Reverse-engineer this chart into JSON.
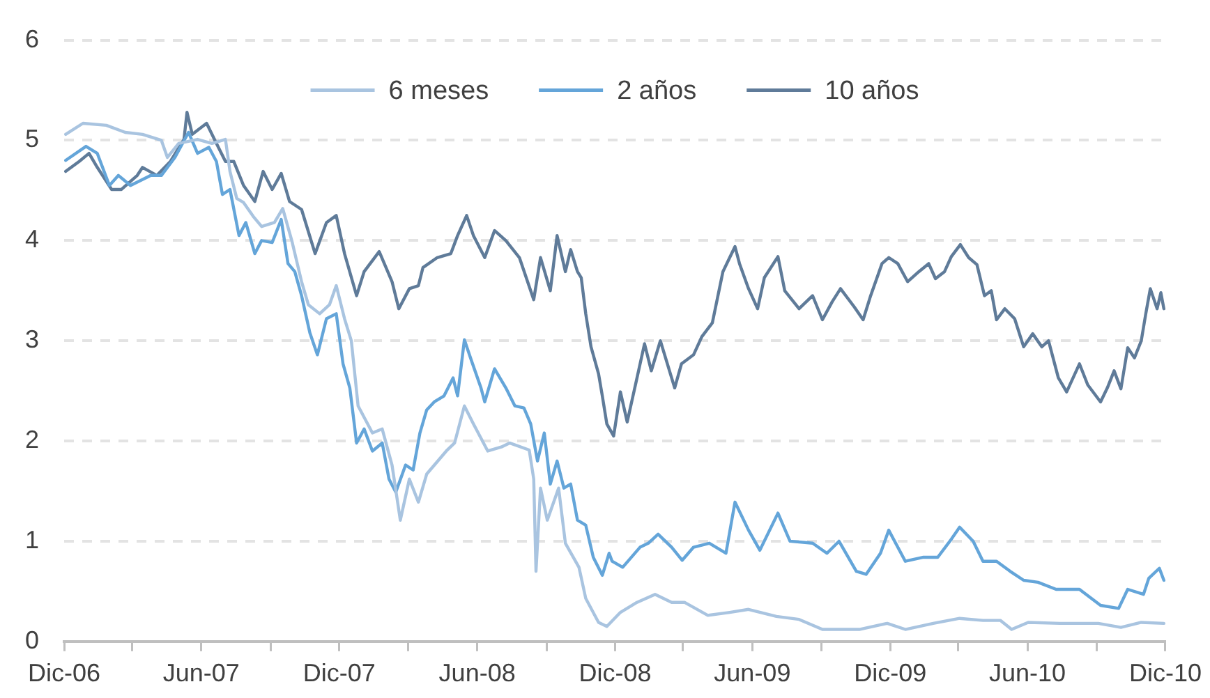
{
  "chart_data": {
    "type": "line",
    "xlim": [
      "2006-12",
      "2010-12"
    ],
    "xticks": [
      {
        "value": "2006-12",
        "label": "Dic-06"
      },
      {
        "value": "2007-03",
        "label": null
      },
      {
        "value": "2007-06",
        "label": "Jun-07"
      },
      {
        "value": "2007-09",
        "label": null
      },
      {
        "value": "2007-12",
        "label": "Dic-07"
      },
      {
        "value": "2008-03",
        "label": null
      },
      {
        "value": "2008-06",
        "label": "Jun-08"
      },
      {
        "value": "2008-09",
        "label": null
      },
      {
        "value": "2008-12",
        "label": "Dic-08"
      },
      {
        "value": "2009-03",
        "label": null
      },
      {
        "value": "2009-06",
        "label": "Jun-09"
      },
      {
        "value": "2009-09",
        "label": null
      },
      {
        "value": "2009-12",
        "label": "Dic-09"
      },
      {
        "value": "2010-03",
        "label": null
      },
      {
        "value": "2010-06",
        "label": "Jun-10"
      },
      {
        "value": "2010-09",
        "label": null
      },
      {
        "value": "2010-12",
        "label": "Dic-10"
      }
    ],
    "ylim": [
      0,
      6
    ],
    "yticks": [
      0,
      1,
      2,
      3,
      4,
      5,
      6
    ],
    "grid": "y",
    "legend": "top",
    "marker": "none",
    "line_style": "solid",
    "series": [
      {
        "name": "6 meses",
        "color": "#a9c4e0",
        "x": [
          "2006-12-03",
          "2006-12-26",
          "2007-01-26",
          "2007-02-20",
          "2007-03-15",
          "2007-04-09",
          "2007-04-17",
          "2007-05-02",
          "2007-05-27",
          "2007-06-15",
          "2007-07-03",
          "2007-07-09",
          "2007-07-18",
          "2007-07-27",
          "2007-08-09",
          "2007-08-20",
          "2007-09-06",
          "2007-09-17",
          "2007-09-29",
          "2007-10-12",
          "2007-10-21",
          "2007-11-05",
          "2007-11-18",
          "2007-11-27",
          "2007-12-08",
          "2007-12-17",
          "2007-12-26",
          "2008-01-14",
          "2008-01-27",
          "2008-02-09",
          "2008-02-20",
          "2008-03-03",
          "2008-03-15",
          "2008-03-26",
          "2008-04-21",
          "2008-05-02",
          "2008-05-15",
          "2008-05-27",
          "2008-06-15",
          "2008-07-03",
          "2008-07-14",
          "2008-08-09",
          "2008-08-15",
          "2008-08-18",
          "2008-08-24",
          "2008-09-02",
          "2008-09-17",
          "2008-09-26",
          "2008-10-14",
          "2008-10-23",
          "2008-11-09",
          "2008-11-20",
          "2008-12-08",
          "2008-12-30",
          "2009-01-23",
          "2009-02-14",
          "2009-03-03",
          "2009-04-03",
          "2009-05-02",
          "2009-05-27",
          "2009-07-03",
          "2009-08-02",
          "2009-09-02",
          "2009-10-21",
          "2009-11-27",
          "2009-12-21",
          "2010-01-27",
          "2010-03-03",
          "2010-04-03",
          "2010-04-26",
          "2010-05-11",
          "2010-06-02",
          "2010-07-14",
          "2010-09-03",
          "2010-10-03",
          "2010-10-30",
          "2010-11-29"
        ],
        "values": [
          5.06,
          5.17,
          5.15,
          5.08,
          5.06,
          5.0,
          4.83,
          4.97,
          5.01,
          4.97,
          5.01,
          4.69,
          4.42,
          4.38,
          4.24,
          4.14,
          4.18,
          4.32,
          4.0,
          3.59,
          3.36,
          3.27,
          3.36,
          3.55,
          3.22,
          3.0,
          2.35,
          2.08,
          2.12,
          1.76,
          1.21,
          1.62,
          1.39,
          1.67,
          1.9,
          1.98,
          2.35,
          2.17,
          1.9,
          1.94,
          1.98,
          1.91,
          1.62,
          0.7,
          1.53,
          1.21,
          1.53,
          0.98,
          0.74,
          0.43,
          0.19,
          0.15,
          0.29,
          0.39,
          0.47,
          0.39,
          0.39,
          0.26,
          0.29,
          0.32,
          0.25,
          0.22,
          0.12,
          0.12,
          0.18,
          0.12,
          0.18,
          0.23,
          0.21,
          0.21,
          0.12,
          0.19,
          0.18,
          0.18,
          0.14,
          0.19,
          0.18
        ]
      },
      {
        "name": "2 años",
        "color": "#64a5d9",
        "x": [
          "2006-12-03",
          "2006-12-30",
          "2007-01-14",
          "2007-01-30",
          "2007-02-11",
          "2007-02-27",
          "2007-03-26",
          "2007-04-09",
          "2007-04-27",
          "2007-05-15",
          "2007-05-27",
          "2007-06-11",
          "2007-06-21",
          "2007-06-29",
          "2007-07-09",
          "2007-07-21",
          "2007-07-30",
          "2007-08-11",
          "2007-08-20",
          "2007-09-03",
          "2007-09-15",
          "2007-09-24",
          "2007-10-03",
          "2007-10-12",
          "2007-10-23",
          "2007-11-02",
          "2007-11-14",
          "2007-11-27",
          "2007-12-06",
          "2007-12-15",
          "2007-12-24",
          "2008-01-03",
          "2008-01-14",
          "2008-01-27",
          "2008-02-05",
          "2008-02-14",
          "2008-02-27",
          "2008-03-08",
          "2008-03-17",
          "2008-03-26",
          "2008-04-05",
          "2008-04-18",
          "2008-04-30",
          "2008-05-06",
          "2008-05-15",
          "2008-05-24",
          "2008-06-06",
          "2008-06-11",
          "2008-06-24",
          "2008-07-09",
          "2008-07-21",
          "2008-08-02",
          "2008-08-11",
          "2008-08-20",
          "2008-08-29",
          "2008-09-06",
          "2008-09-15",
          "2008-09-24",
          "2008-10-03",
          "2008-10-12",
          "2008-10-23",
          "2008-11-02",
          "2008-11-14",
          "2008-11-23",
          "2008-11-27",
          "2008-12-11",
          "2009-01-03",
          "2009-01-14",
          "2009-01-27",
          "2009-02-14",
          "2009-02-28",
          "2009-03-15",
          "2009-04-05",
          "2009-04-27",
          "2009-05-09",
          "2009-05-27",
          "2009-06-11",
          "2009-07-05",
          "2009-07-21",
          "2009-08-20",
          "2009-09-08",
          "2009-09-24",
          "2009-10-17",
          "2009-10-30",
          "2009-11-18",
          "2009-11-29",
          "2009-12-21",
          "2010-01-14",
          "2010-02-02",
          "2010-02-20",
          "2010-03-03",
          "2010-03-21",
          "2010-04-03",
          "2010-04-21",
          "2010-05-09",
          "2010-05-27",
          "2010-06-15",
          "2010-07-09",
          "2010-08-09",
          "2010-09-06",
          "2010-09-30",
          "2010-10-12",
          "2010-11-02",
          "2010-11-09",
          "2010-11-23",
          "2010-11-29"
        ],
        "values": [
          4.8,
          4.94,
          4.87,
          4.55,
          4.65,
          4.55,
          4.65,
          4.65,
          4.83,
          5.08,
          4.87,
          4.93,
          4.79,
          4.46,
          4.51,
          4.05,
          4.18,
          3.87,
          4.0,
          3.98,
          4.21,
          3.77,
          3.69,
          3.45,
          3.08,
          2.86,
          3.22,
          3.27,
          2.77,
          2.53,
          1.98,
          2.12,
          1.9,
          1.98,
          1.62,
          1.49,
          1.76,
          1.71,
          2.08,
          2.31,
          2.39,
          2.45,
          2.63,
          2.45,
          3.01,
          2.81,
          2.53,
          2.39,
          2.72,
          2.53,
          2.35,
          2.33,
          2.17,
          1.8,
          2.08,
          1.57,
          1.8,
          1.53,
          1.57,
          1.21,
          1.16,
          0.84,
          0.66,
          0.88,
          0.8,
          0.74,
          0.94,
          0.98,
          1.07,
          0.94,
          0.81,
          0.94,
          0.98,
          0.88,
          1.39,
          1.11,
          0.91,
          1.28,
          1.0,
          0.98,
          0.88,
          1.0,
          0.7,
          0.67,
          0.88,
          1.11,
          0.8,
          0.84,
          0.84,
          1.02,
          1.14,
          1.0,
          0.8,
          0.8,
          0.7,
          0.61,
          0.59,
          0.52,
          0.52,
          0.36,
          0.33,
          0.52,
          0.47,
          0.63,
          0.73,
          0.61
        ]
      },
      {
        "name": "10 años",
        "color": "#5f7b99",
        "x": [
          "2006-12-03",
          "2006-12-21",
          "2007-01-03",
          "2007-01-14",
          "2007-02-02",
          "2007-02-15",
          "2007-03-08",
          "2007-03-15",
          "2007-04-03",
          "2007-04-21",
          "2007-05-09",
          "2007-05-13",
          "2007-05-20",
          "2007-06-08",
          "2007-06-21",
          "2007-07-03",
          "2007-07-14",
          "2007-07-27",
          "2007-08-11",
          "2007-08-22",
          "2007-09-03",
          "2007-09-15",
          "2007-09-26",
          "2007-10-12",
          "2007-10-30",
          "2007-11-14",
          "2007-11-27",
          "2007-12-08",
          "2007-12-24",
          "2008-01-03",
          "2008-01-23",
          "2008-02-09",
          "2008-02-18",
          "2008-03-03",
          "2008-03-15",
          "2008-03-21",
          "2008-04-09",
          "2008-04-27",
          "2008-05-06",
          "2008-05-18",
          "2008-05-27",
          "2008-06-11",
          "2008-06-24",
          "2008-07-09",
          "2008-07-27",
          "2008-08-15",
          "2008-08-24",
          "2008-09-06",
          "2008-09-15",
          "2008-09-26",
          "2008-10-03",
          "2008-10-12",
          "2008-10-17",
          "2008-10-23",
          "2008-10-30",
          "2008-11-09",
          "2008-11-14",
          "2008-11-20",
          "2008-11-29",
          "2008-12-08",
          "2008-12-17",
          "2008-12-30",
          "2009-01-09",
          "2009-01-18",
          "2009-01-30",
          "2009-02-18",
          "2009-02-27",
          "2009-03-15",
          "2009-03-26",
          "2009-04-09",
          "2009-04-23",
          "2009-05-09",
          "2009-05-15",
          "2009-05-27",
          "2009-06-08",
          "2009-06-17",
          "2009-07-05",
          "2009-07-14",
          "2009-08-02",
          "2009-08-20",
          "2009-09-02",
          "2009-09-15",
          "2009-09-26",
          "2009-10-14",
          "2009-10-26",
          "2009-11-05",
          "2009-11-20",
          "2009-11-29",
          "2009-12-11",
          "2009-12-24",
          "2010-01-08",
          "2010-01-21",
          "2010-01-30",
          "2010-02-11",
          "2010-02-20",
          "2010-03-04",
          "2010-03-15",
          "2010-03-26",
          "2010-04-05",
          "2010-04-14",
          "2010-04-21",
          "2010-05-02",
          "2010-05-15",
          "2010-05-27",
          "2010-06-08",
          "2010-06-20",
          "2010-06-29",
          "2010-07-12",
          "2010-07-23",
          "2010-08-09",
          "2010-08-20",
          "2010-09-06",
          "2010-09-15",
          "2010-09-24",
          "2010-10-03",
          "2010-10-12",
          "2010-10-21",
          "2010-10-30",
          "2010-11-05",
          "2010-11-11",
          "2010-11-20",
          "2010-11-25",
          "2010-11-29"
        ],
        "values": [
          4.69,
          4.79,
          4.87,
          4.73,
          4.51,
          4.51,
          4.65,
          4.73,
          4.65,
          4.79,
          5.01,
          5.28,
          5.06,
          5.17,
          4.97,
          4.79,
          4.79,
          4.55,
          4.39,
          4.69,
          4.51,
          4.67,
          4.39,
          4.31,
          3.87,
          4.18,
          4.25,
          3.87,
          3.45,
          3.69,
          3.89,
          3.59,
          3.32,
          3.52,
          3.55,
          3.73,
          3.83,
          3.87,
          4.05,
          4.25,
          4.05,
          3.83,
          4.1,
          4.0,
          3.83,
          3.41,
          3.83,
          3.5,
          4.05,
          3.69,
          3.91,
          3.69,
          3.63,
          3.27,
          2.94,
          2.67,
          2.45,
          2.17,
          2.05,
          2.49,
          2.19,
          2.63,
          2.97,
          2.7,
          3.0,
          2.53,
          2.77,
          2.86,
          3.04,
          3.18,
          3.69,
          3.94,
          3.77,
          3.52,
          3.32,
          3.63,
          3.84,
          3.5,
          3.32,
          3.45,
          3.21,
          3.39,
          3.52,
          3.34,
          3.21,
          3.45,
          3.77,
          3.83,
          3.77,
          3.59,
          3.69,
          3.77,
          3.62,
          3.69,
          3.84,
          3.96,
          3.83,
          3.76,
          3.45,
          3.5,
          3.21,
          3.32,
          3.22,
          2.94,
          3.07,
          2.94,
          3.0,
          2.63,
          2.49,
          2.77,
          2.56,
          2.39,
          2.53,
          2.7,
          2.52,
          2.93,
          2.83,
          3.0,
          3.27,
          3.52,
          3.32,
          3.48,
          3.32
        ]
      }
    ]
  }
}
